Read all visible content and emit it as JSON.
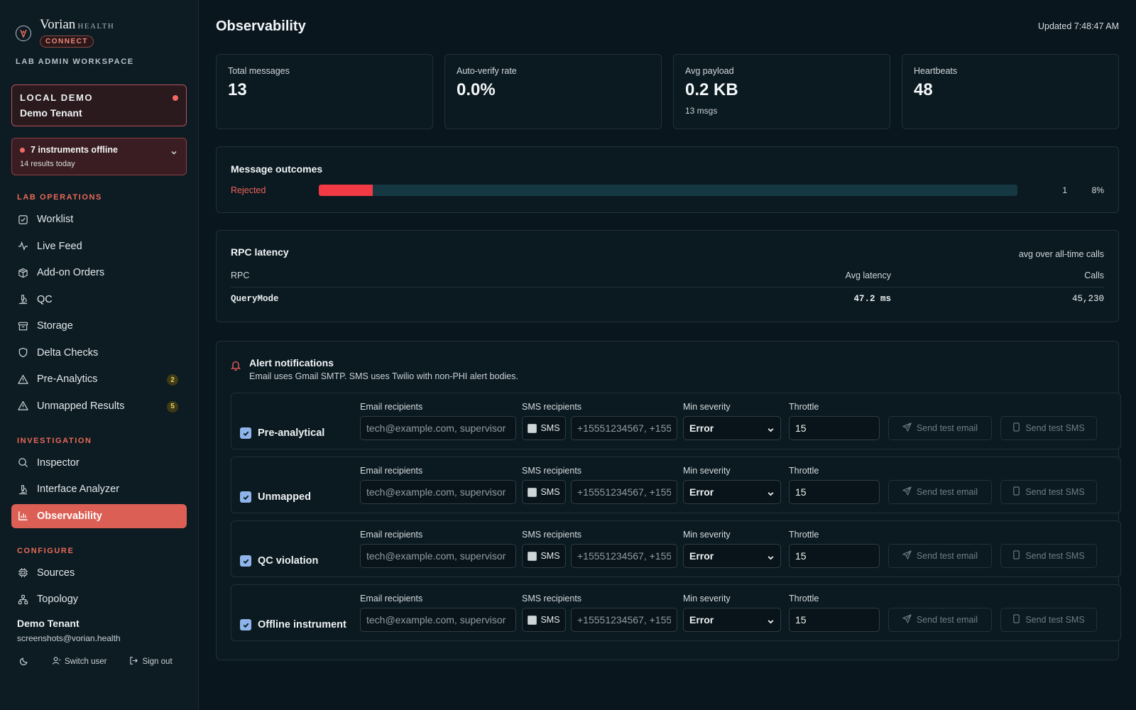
{
  "brand": {
    "name": "Vorian",
    "sub": "HEALTH",
    "badge": "CONNECT",
    "workspace": "LAB ADMIN WORKSPACE"
  },
  "tenant_card": {
    "line1": "LOCAL DEMO",
    "line2": "Demo Tenant"
  },
  "offline_card": {
    "line1": "7 instruments offline",
    "line2": "14 results today"
  },
  "nav": {
    "sections": [
      {
        "title": "LAB OPERATIONS",
        "items": [
          {
            "label": "Worklist",
            "icon": "checkbox-icon"
          },
          {
            "label": "Live Feed",
            "icon": "activity-icon"
          },
          {
            "label": "Add-on Orders",
            "icon": "package-icon"
          },
          {
            "label": "QC",
            "icon": "microscope-icon"
          },
          {
            "label": "Storage",
            "icon": "archive-icon"
          },
          {
            "label": "Delta Checks",
            "icon": "shield-icon"
          },
          {
            "label": "Pre-Analytics",
            "icon": "warning-icon",
            "badge": "2"
          },
          {
            "label": "Unmapped Results",
            "icon": "warning-icon",
            "badge": "5"
          }
        ]
      },
      {
        "title": "INVESTIGATION",
        "items": [
          {
            "label": "Inspector",
            "icon": "search-icon"
          },
          {
            "label": "Interface Analyzer",
            "icon": "microscope-icon"
          },
          {
            "label": "Observability",
            "icon": "bar-chart-icon",
            "active": true
          }
        ]
      },
      {
        "title": "CONFIGURE",
        "items": [
          {
            "label": "Sources",
            "icon": "chip-icon"
          },
          {
            "label": "Topology",
            "icon": "network-icon"
          }
        ]
      }
    ]
  },
  "user": {
    "name": "Demo Tenant",
    "email": "screenshots@vorian.health",
    "switch_label": "Switch user",
    "signout_label": "Sign out"
  },
  "header": {
    "title": "Observability",
    "updated": "Updated 7:48:47 AM"
  },
  "stats": [
    {
      "label": "Total messages",
      "value": "13",
      "sub": ""
    },
    {
      "label": "Auto-verify rate",
      "value": "0.0%",
      "sub": ""
    },
    {
      "label": "Avg payload",
      "value": "0.2 KB",
      "sub": "13 msgs"
    },
    {
      "label": "Heartbeats",
      "value": "48",
      "sub": ""
    }
  ],
  "outcomes": {
    "title": "Message outcomes",
    "rows": [
      {
        "label": "Rejected",
        "count": "1",
        "pct": "8%",
        "fraction": 0.077
      }
    ],
    "colors": {
      "fill": "#f23a44",
      "track": "#153843"
    }
  },
  "latency": {
    "title": "RPC latency",
    "note": "avg over all-time calls",
    "columns": {
      "rpc": "RPC",
      "latency": "Avg latency",
      "calls": "Calls"
    },
    "rows": [
      {
        "rpc": "QueryMode",
        "latency": "47.2 ms",
        "calls": "45,230"
      }
    ]
  },
  "alerts": {
    "title": "Alert notifications",
    "subtitle": "Email uses Gmail SMTP. SMS uses Twilio with non-PHI alert bodies.",
    "labels": {
      "email": "Email recipients",
      "sms": "SMS recipients",
      "severity": "Min severity",
      "throttle": "Throttle",
      "sms_toggle": "SMS",
      "send_email": "Send test email",
      "send_sms": "Send test SMS"
    },
    "placeholders": {
      "email": "tech@example.com, supervisor",
      "sms": "+15551234567, +155"
    },
    "rules": [
      {
        "name": "Pre-analytical",
        "checked": true,
        "severity": "Error",
        "throttle": "15"
      },
      {
        "name": "Unmapped",
        "checked": true,
        "severity": "Error",
        "throttle": "15"
      },
      {
        "name": "QC violation",
        "checked": true,
        "severity": "Error",
        "throttle": "15"
      },
      {
        "name": "Offline instrument",
        "checked": true,
        "severity": "Error",
        "throttle": "15"
      }
    ]
  }
}
